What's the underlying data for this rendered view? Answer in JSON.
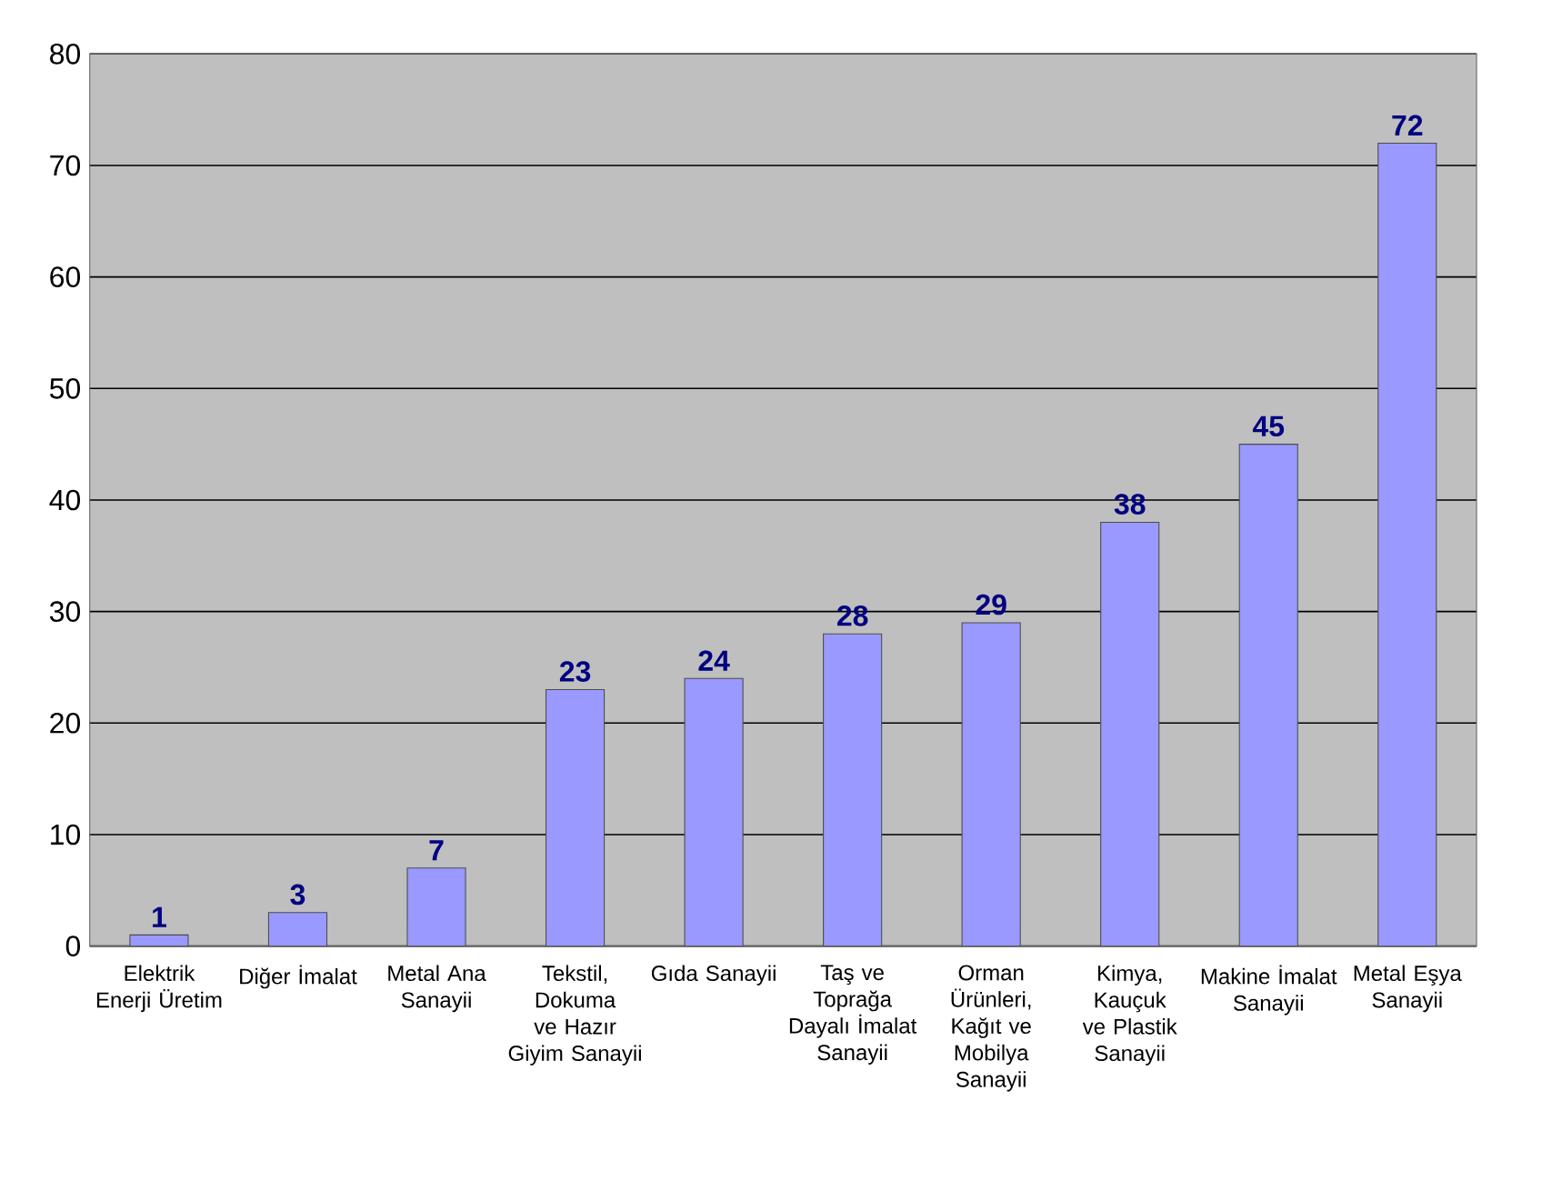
{
  "chart_data": {
    "type": "bar",
    "categories": [
      "Elektrik Enerji Üretim",
      "Diğer İmalat",
      "Metal Ana Sanayii",
      "Tekstil, Dokuma ve Hazır Giyim Sanayii",
      "Gıda Sanayii",
      "Taş ve Toprağa Dayalı İmalat Sanayii",
      "Orman Ürünleri, Kağıt ve Mobilya Sanayii",
      "Kimya, Kauçuk ve Plastik Sanayii",
      "Makine İmalat Sanayii",
      "Metal Eşya Sanayii"
    ],
    "values": [
      1,
      3,
      7,
      23,
      24,
      28,
      29,
      38,
      45,
      72
    ],
    "color": "#9999ff",
    "ylim": [
      0,
      80
    ],
    "yticks": [
      0,
      10,
      20,
      30,
      40,
      50,
      60,
      70,
      80
    ],
    "grid": "y",
    "data_labels": true
  }
}
